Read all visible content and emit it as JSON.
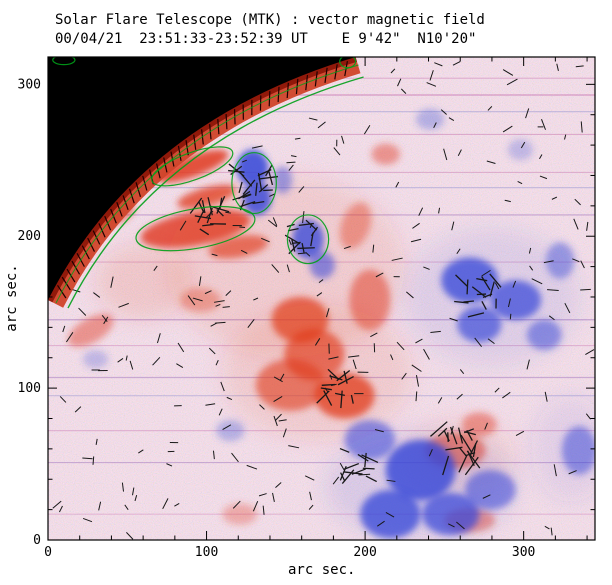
{
  "title": "Solar Flare Telescope (MTK) : vector magnetic field",
  "subtitle": "00/04/21  23:51:33-23:52:39 UT    E 9'42\"  N10'20\"",
  "axes": {
    "xlabel": "arc sec.",
    "ylabel": "arc sec.",
    "xticks": [
      0,
      100,
      200,
      300
    ],
    "yticks": [
      0,
      100,
      200,
      300
    ],
    "xrange": [
      0,
      345
    ],
    "yrange": [
      0,
      318
    ],
    "minor_tick_step": 20
  },
  "chart_data": {
    "type": "heatmap",
    "title": "Solar Flare Telescope (MTK) : vector magnetic field",
    "xlabel": "arc sec.",
    "ylabel": "arc sec.",
    "xlim": [
      0,
      345
    ],
    "ylim": [
      0,
      318
    ],
    "colors": {
      "background": "#faf0ee",
      "positive": "#e03a1e",
      "negative": "#3344d8",
      "limb_rim": "#d0452a",
      "limb_edge": "#8a1405",
      "contour": "#00a018",
      "off_disk": "#000000",
      "vector": "#181818",
      "frame": "#000000"
    },
    "limb": {
      "p0": [
        194,
        318
      ],
      "c": [
        57,
        275
      ],
      "p1": [
        0,
        158
      ]
    },
    "blobs": [
      [
        91,
        246,
        24,
        7,
        -20,
        0.85,
        "pos"
      ],
      [
        100,
        226,
        19,
        6,
        -15,
        0.75,
        "pos"
      ],
      [
        93,
        205,
        35,
        11,
        -10,
        0.8,
        "pos"
      ],
      [
        120,
        193,
        19,
        7,
        -10,
        0.65,
        "pos"
      ],
      [
        45,
        214,
        11,
        5,
        -30,
        0.55,
        "pos"
      ],
      [
        159,
        145,
        18,
        15,
        0,
        0.7,
        "pos"
      ],
      [
        168,
        122,
        19,
        17,
        0,
        0.65,
        "pos"
      ],
      [
        153,
        102,
        22,
        17,
        0,
        0.6,
        "pos"
      ],
      [
        187,
        95,
        19,
        15,
        0,
        0.75,
        "pos"
      ],
      [
        203,
        158,
        13,
        20,
        0,
        0.5,
        "pos"
      ],
      [
        194,
        207,
        9,
        16,
        20,
        0.4,
        "pos"
      ],
      [
        213,
        254,
        9,
        7,
        0,
        0.45,
        "pos"
      ],
      [
        257,
        59,
        19,
        12,
        0,
        0.55,
        "pos"
      ],
      [
        272,
        76,
        11,
        8,
        0,
        0.45,
        "pos"
      ],
      [
        96,
        158,
        13,
        8,
        0,
        0.35,
        "pos"
      ],
      [
        27,
        138,
        16,
        8,
        -30,
        0.45,
        "pos"
      ],
      [
        266,
        13,
        16,
        8,
        0,
        0.45,
        "pos"
      ],
      [
        121,
        17,
        11,
        7,
        0,
        0.3,
        "pos"
      ],
      [
        150,
        180,
        75,
        60,
        0,
        0.1,
        "pos"
      ],
      [
        170,
        110,
        60,
        45,
        0,
        0.1,
        "pos"
      ],
      [
        260,
        55,
        35,
        25,
        0,
        0.08,
        "pos"
      ],
      [
        60,
        170,
        30,
        25,
        0,
        0.12,
        "pos"
      ],
      [
        129,
        245,
        10,
        12,
        0,
        0.85,
        "neg"
      ],
      [
        132,
        225,
        9,
        11,
        0,
        0.8,
        "neg"
      ],
      [
        148,
        237,
        6,
        9,
        0,
        0.45,
        "neg"
      ],
      [
        164,
        198,
        10,
        13,
        0,
        0.75,
        "neg"
      ],
      [
        173,
        181,
        8,
        9,
        0,
        0.55,
        "neg"
      ],
      [
        266,
        171,
        18,
        15,
        0,
        0.75,
        "neg"
      ],
      [
        295,
        158,
        16,
        13,
        0,
        0.7,
        "neg"
      ],
      [
        272,
        142,
        14,
        12,
        0,
        0.65,
        "neg"
      ],
      [
        313,
        135,
        11,
        10,
        0,
        0.5,
        "neg"
      ],
      [
        323,
        184,
        9,
        12,
        0,
        0.45,
        "neg"
      ],
      [
        235,
        46,
        22,
        20,
        0,
        0.8,
        "neg"
      ],
      [
        216,
        17,
        19,
        16,
        0,
        0.75,
        "neg"
      ],
      [
        254,
        17,
        18,
        14,
        0,
        0.7,
        "neg"
      ],
      [
        203,
        66,
        16,
        13,
        0,
        0.55,
        "neg"
      ],
      [
        279,
        33,
        16,
        13,
        0,
        0.55,
        "neg"
      ],
      [
        335,
        59,
        11,
        16,
        0,
        0.5,
        "neg"
      ],
      [
        241,
        277,
        9,
        7,
        0,
        0.3,
        "neg"
      ],
      [
        298,
        257,
        8,
        7,
        0,
        0.25,
        "neg"
      ],
      [
        115,
        72,
        9,
        7,
        0,
        0.3,
        "neg"
      ],
      [
        30,
        119,
        8,
        6,
        0,
        0.25,
        "neg"
      ],
      [
        280,
        160,
        55,
        45,
        0,
        0.1,
        "neg"
      ],
      [
        235,
        35,
        60,
        35,
        0,
        0.12,
        "neg"
      ],
      [
        330,
        60,
        25,
        35,
        0,
        0.08,
        "neg"
      ]
    ],
    "streaks": [
      [
        304,
        "#cc80b8",
        0.45
      ],
      [
        293,
        "#c060a8",
        0.55
      ],
      [
        282,
        "#8888cc",
        0.45
      ],
      [
        267,
        "#c878b0",
        0.5
      ],
      [
        242,
        "#c878b0",
        0.45
      ],
      [
        232,
        "#8888cc",
        0.4
      ],
      [
        214,
        "#9a6ab8",
        0.5
      ],
      [
        183,
        "#cc80b8",
        0.45
      ],
      [
        145,
        "#9a6ab8",
        0.5
      ],
      [
        128,
        "#cc80b8",
        0.45
      ],
      [
        107,
        "#9a6ab8",
        0.45
      ],
      [
        95,
        "#8888cc",
        0.4
      ],
      [
        72,
        "#cc80b8",
        0.45
      ],
      [
        51,
        "#9a6ab8",
        0.45
      ],
      [
        17,
        "#cc80b8",
        0.4
      ]
    ],
    "vectors": {
      "count": 280,
      "seed": 11,
      "min_len": 5,
      "max_len": 12,
      "clusters": [
        {
          "x": 130,
          "y": 232,
          "n": 20,
          "spread": 18,
          "len": 15
        },
        {
          "x": 100,
          "y": 213,
          "n": 14,
          "spread": 16,
          "len": 14
        },
        {
          "x": 257,
          "y": 60,
          "n": 20,
          "spread": 20,
          "len": 16
        },
        {
          "x": 195,
          "y": 50,
          "n": 12,
          "spread": 16,
          "len": 14
        },
        {
          "x": 272,
          "y": 160,
          "n": 14,
          "spread": 18,
          "len": 13
        },
        {
          "x": 182,
          "y": 100,
          "n": 12,
          "spread": 16,
          "len": 13
        },
        {
          "x": 160,
          "y": 200,
          "n": 12,
          "spread": 14,
          "len": 13
        }
      ]
    },
    "contour_ellipses": [
      [
        93,
        205,
        38,
        13,
        -10
      ],
      [
        91,
        246,
        27,
        9,
        -20
      ],
      [
        130,
        235,
        14,
        20,
        0
      ],
      [
        164,
        198,
        13,
        16,
        0
      ],
      [
        10,
        316,
        7,
        3,
        0
      ],
      [
        189,
        315,
        5,
        4,
        0
      ]
    ]
  }
}
